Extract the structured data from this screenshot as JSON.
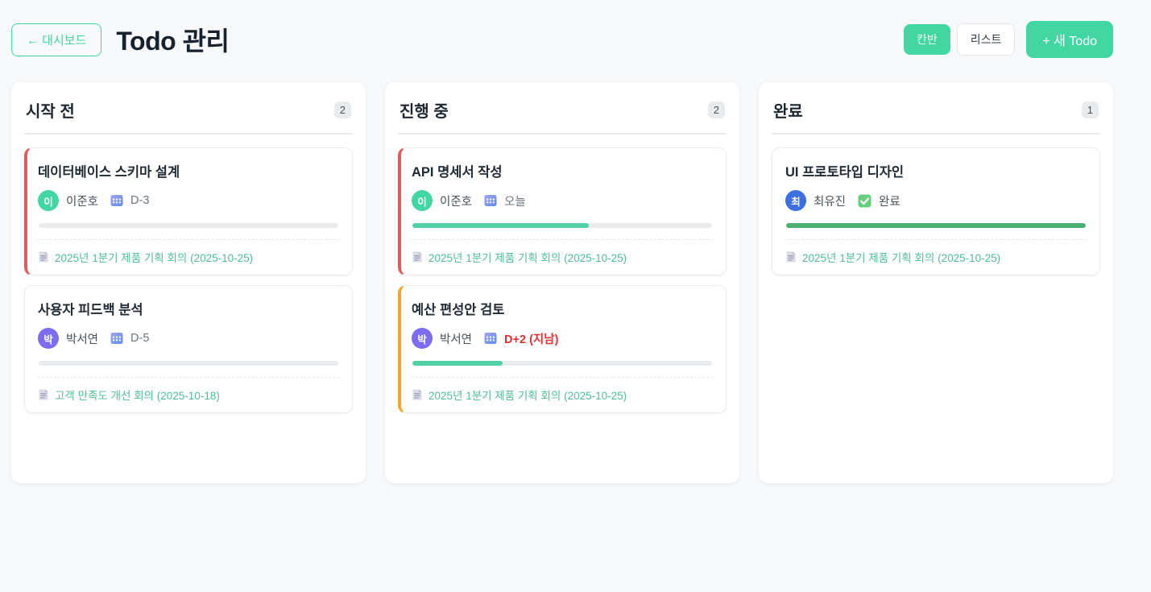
{
  "header": {
    "back_button": "← 대시보드",
    "title": "Todo 관리",
    "view_toggle": {
      "kanban": "칸반",
      "list": "리스트"
    },
    "new_todo_button": "+ 새 Todo"
  },
  "colors": {
    "page_bg": "#f6f8fa",
    "primary_green": "#42d6a3",
    "link_green": "#4fbe93",
    "overdue_red": "#e03131",
    "accent_red": "#e05c5c",
    "accent_orange": "#f0a72d",
    "progress_mint": "#52d1a4",
    "progress_done_green": "#4caf72",
    "avatar_green": "#42d6a3",
    "avatar_purple": "#7b6cf0",
    "avatar_blue": "#3e6fe0"
  },
  "icons": {
    "back_arrow": "left-arrow-icon",
    "calendar": "calendar-icon",
    "check": "check-icon",
    "document": "document-icon"
  },
  "columns": [
    {
      "title": "시작 전",
      "count": "2",
      "cards": [
        {
          "title": "데이터베이스 스키마 설계",
          "accent_color": "#e05c5c",
          "avatar": {
            "letter": "이",
            "color": "#42d6a3"
          },
          "assignee": "이준호",
          "due_text": "D-3",
          "due_state": "normal",
          "progress_pct": 0,
          "progress_color": "#52d1a4",
          "meeting_link": "2025년 1분기 제품 기획 회의 (2025-10-25)"
        },
        {
          "title": "사용자 피드백 분석",
          "accent_color": null,
          "avatar": {
            "letter": "박",
            "color": "#7b6cf0"
          },
          "assignee": "박서연",
          "due_text": "D-5",
          "due_state": "normal",
          "progress_pct": 0,
          "progress_color": "#52d1a4",
          "meeting_link": "고객 만족도 개선 회의 (2025-10-18)"
        }
      ]
    },
    {
      "title": "진행 중",
      "count": "2",
      "cards": [
        {
          "title": "API 명세서 작성",
          "accent_color": "#e05c5c",
          "avatar": {
            "letter": "이",
            "color": "#42d6a3"
          },
          "assignee": "이준호",
          "due_text": "오늘",
          "due_state": "normal",
          "progress_pct": 59,
          "progress_color": "#52d1a4",
          "meeting_link": "2025년 1분기 제품 기획 회의 (2025-10-25)"
        },
        {
          "title": "예산 편성안 검토",
          "accent_color": "#f0a72d",
          "avatar": {
            "letter": "박",
            "color": "#7b6cf0"
          },
          "assignee": "박서연",
          "due_text": "D+2 (지남)",
          "due_state": "overdue",
          "progress_pct": 30,
          "progress_color": "#52d1a4",
          "meeting_link": "2025년 1분기 제품 기획 회의 (2025-10-25)"
        }
      ]
    },
    {
      "title": "완료",
      "count": "1",
      "cards": [
        {
          "title": "UI 프로토타입 디자인",
          "accent_color": null,
          "avatar": {
            "letter": "최",
            "color": "#3e6fe0"
          },
          "assignee": "최유진",
          "due_text": "완료",
          "due_state": "done",
          "progress_pct": 100,
          "progress_color": "#4caf72",
          "meeting_link": "2025년 1분기 제품 기획 회의 (2025-10-25)"
        }
      ]
    }
  ]
}
